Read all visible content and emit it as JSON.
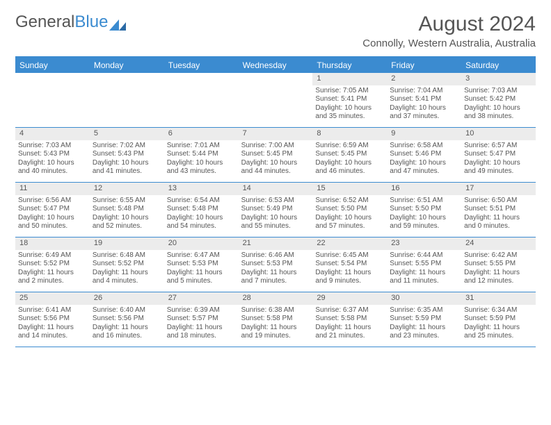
{
  "logo": {
    "part1": "General",
    "part2": "Blue"
  },
  "title": "August 2024",
  "location": "Connolly, Western Australia, Australia",
  "colors": {
    "accent": "#3b8bd0",
    "header_text": "#ffffff",
    "body_text": "#555555",
    "daynum_bg": "#ececec",
    "background": "#ffffff"
  },
  "typography": {
    "title_fontsize": 30,
    "location_fontsize": 15,
    "dayheader_fontsize": 12,
    "cell_fontsize": 10,
    "font_family": "Arial"
  },
  "layout": {
    "columns": 7,
    "rows": 5,
    "cell_min_height": 78
  },
  "day_names": [
    "Sunday",
    "Monday",
    "Tuesday",
    "Wednesday",
    "Thursday",
    "Friday",
    "Saturday"
  ],
  "weeks": [
    [
      {
        "day": "",
        "sunrise": "",
        "sunset": "",
        "daylight": ""
      },
      {
        "day": "",
        "sunrise": "",
        "sunset": "",
        "daylight": ""
      },
      {
        "day": "",
        "sunrise": "",
        "sunset": "",
        "daylight": ""
      },
      {
        "day": "",
        "sunrise": "",
        "sunset": "",
        "daylight": ""
      },
      {
        "day": "1",
        "sunrise": "Sunrise: 7:05 AM",
        "sunset": "Sunset: 5:41 PM",
        "daylight": "Daylight: 10 hours and 35 minutes."
      },
      {
        "day": "2",
        "sunrise": "Sunrise: 7:04 AM",
        "sunset": "Sunset: 5:41 PM",
        "daylight": "Daylight: 10 hours and 37 minutes."
      },
      {
        "day": "3",
        "sunrise": "Sunrise: 7:03 AM",
        "sunset": "Sunset: 5:42 PM",
        "daylight": "Daylight: 10 hours and 38 minutes."
      }
    ],
    [
      {
        "day": "4",
        "sunrise": "Sunrise: 7:03 AM",
        "sunset": "Sunset: 5:43 PM",
        "daylight": "Daylight: 10 hours and 40 minutes."
      },
      {
        "day": "5",
        "sunrise": "Sunrise: 7:02 AM",
        "sunset": "Sunset: 5:43 PM",
        "daylight": "Daylight: 10 hours and 41 minutes."
      },
      {
        "day": "6",
        "sunrise": "Sunrise: 7:01 AM",
        "sunset": "Sunset: 5:44 PM",
        "daylight": "Daylight: 10 hours and 43 minutes."
      },
      {
        "day": "7",
        "sunrise": "Sunrise: 7:00 AM",
        "sunset": "Sunset: 5:45 PM",
        "daylight": "Daylight: 10 hours and 44 minutes."
      },
      {
        "day": "8",
        "sunrise": "Sunrise: 6:59 AM",
        "sunset": "Sunset: 5:45 PM",
        "daylight": "Daylight: 10 hours and 46 minutes."
      },
      {
        "day": "9",
        "sunrise": "Sunrise: 6:58 AM",
        "sunset": "Sunset: 5:46 PM",
        "daylight": "Daylight: 10 hours and 47 minutes."
      },
      {
        "day": "10",
        "sunrise": "Sunrise: 6:57 AM",
        "sunset": "Sunset: 5:47 PM",
        "daylight": "Daylight: 10 hours and 49 minutes."
      }
    ],
    [
      {
        "day": "11",
        "sunrise": "Sunrise: 6:56 AM",
        "sunset": "Sunset: 5:47 PM",
        "daylight": "Daylight: 10 hours and 50 minutes."
      },
      {
        "day": "12",
        "sunrise": "Sunrise: 6:55 AM",
        "sunset": "Sunset: 5:48 PM",
        "daylight": "Daylight: 10 hours and 52 minutes."
      },
      {
        "day": "13",
        "sunrise": "Sunrise: 6:54 AM",
        "sunset": "Sunset: 5:48 PM",
        "daylight": "Daylight: 10 hours and 54 minutes."
      },
      {
        "day": "14",
        "sunrise": "Sunrise: 6:53 AM",
        "sunset": "Sunset: 5:49 PM",
        "daylight": "Daylight: 10 hours and 55 minutes."
      },
      {
        "day": "15",
        "sunrise": "Sunrise: 6:52 AM",
        "sunset": "Sunset: 5:50 PM",
        "daylight": "Daylight: 10 hours and 57 minutes."
      },
      {
        "day": "16",
        "sunrise": "Sunrise: 6:51 AM",
        "sunset": "Sunset: 5:50 PM",
        "daylight": "Daylight: 10 hours and 59 minutes."
      },
      {
        "day": "17",
        "sunrise": "Sunrise: 6:50 AM",
        "sunset": "Sunset: 5:51 PM",
        "daylight": "Daylight: 11 hours and 0 minutes."
      }
    ],
    [
      {
        "day": "18",
        "sunrise": "Sunrise: 6:49 AM",
        "sunset": "Sunset: 5:52 PM",
        "daylight": "Daylight: 11 hours and 2 minutes."
      },
      {
        "day": "19",
        "sunrise": "Sunrise: 6:48 AM",
        "sunset": "Sunset: 5:52 PM",
        "daylight": "Daylight: 11 hours and 4 minutes."
      },
      {
        "day": "20",
        "sunrise": "Sunrise: 6:47 AM",
        "sunset": "Sunset: 5:53 PM",
        "daylight": "Daylight: 11 hours and 5 minutes."
      },
      {
        "day": "21",
        "sunrise": "Sunrise: 6:46 AM",
        "sunset": "Sunset: 5:53 PM",
        "daylight": "Daylight: 11 hours and 7 minutes."
      },
      {
        "day": "22",
        "sunrise": "Sunrise: 6:45 AM",
        "sunset": "Sunset: 5:54 PM",
        "daylight": "Daylight: 11 hours and 9 minutes."
      },
      {
        "day": "23",
        "sunrise": "Sunrise: 6:44 AM",
        "sunset": "Sunset: 5:55 PM",
        "daylight": "Daylight: 11 hours and 11 minutes."
      },
      {
        "day": "24",
        "sunrise": "Sunrise: 6:42 AM",
        "sunset": "Sunset: 5:55 PM",
        "daylight": "Daylight: 11 hours and 12 minutes."
      }
    ],
    [
      {
        "day": "25",
        "sunrise": "Sunrise: 6:41 AM",
        "sunset": "Sunset: 5:56 PM",
        "daylight": "Daylight: 11 hours and 14 minutes."
      },
      {
        "day": "26",
        "sunrise": "Sunrise: 6:40 AM",
        "sunset": "Sunset: 5:56 PM",
        "daylight": "Daylight: 11 hours and 16 minutes."
      },
      {
        "day": "27",
        "sunrise": "Sunrise: 6:39 AM",
        "sunset": "Sunset: 5:57 PM",
        "daylight": "Daylight: 11 hours and 18 minutes."
      },
      {
        "day": "28",
        "sunrise": "Sunrise: 6:38 AM",
        "sunset": "Sunset: 5:58 PM",
        "daylight": "Daylight: 11 hours and 19 minutes."
      },
      {
        "day": "29",
        "sunrise": "Sunrise: 6:37 AM",
        "sunset": "Sunset: 5:58 PM",
        "daylight": "Daylight: 11 hours and 21 minutes."
      },
      {
        "day": "30",
        "sunrise": "Sunrise: 6:35 AM",
        "sunset": "Sunset: 5:59 PM",
        "daylight": "Daylight: 11 hours and 23 minutes."
      },
      {
        "day": "31",
        "sunrise": "Sunrise: 6:34 AM",
        "sunset": "Sunset: 5:59 PM",
        "daylight": "Daylight: 11 hours and 25 minutes."
      }
    ]
  ]
}
